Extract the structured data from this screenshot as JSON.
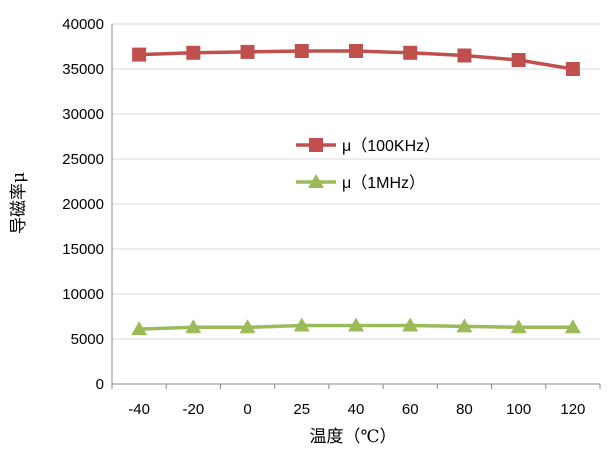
{
  "chart_data": {
    "type": "line",
    "categories": [
      "-40",
      "-20",
      "0",
      "25",
      "40",
      "60",
      "80",
      "100",
      "120"
    ],
    "series": [
      {
        "name": "μ（100KHz）",
        "values": [
          36600,
          36800,
          36900,
          37000,
          37000,
          36800,
          36500,
          36000,
          35000
        ],
        "color": "#c0504d",
        "marker": "square"
      },
      {
        "name": "μ（1MHz）",
        "values": [
          6100,
          6300,
          6300,
          6500,
          6500,
          6500,
          6400,
          6300,
          6300
        ],
        "color": "#9bbb59",
        "marker": "triangle"
      }
    ],
    "title": "",
    "xlabel": "温度（℃）",
    "ylabel": "导磁率μ",
    "ylim": [
      0,
      40000
    ],
    "yticks": [
      "0",
      "5000",
      "10000",
      "15000",
      "20000",
      "25000",
      "30000",
      "35000",
      "40000"
    ],
    "grid": "horizontal",
    "legend_position": "center"
  }
}
